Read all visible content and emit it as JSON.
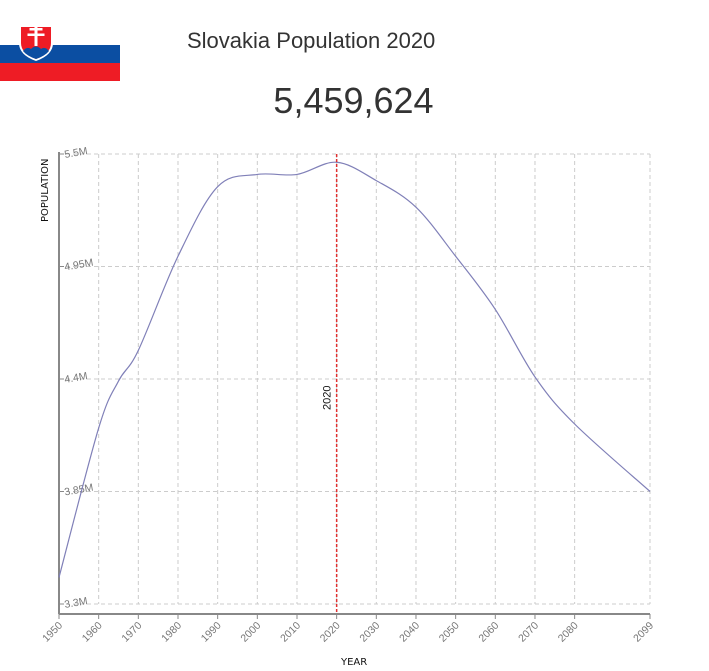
{
  "header": {
    "flag": "slovakia-flag",
    "title": "Slovakia Population 2020",
    "population_value": "5,459,624"
  },
  "colors": {
    "line": "#8080b8",
    "marker": "#e03030",
    "grid": "#cccccc",
    "axis": "#888888",
    "flag_white": "#ffffff",
    "flag_blue": "#0b4ea2",
    "flag_red": "#ee1c25"
  },
  "chart_data": {
    "type": "line",
    "title": "Slovakia Population 2020",
    "xlabel": "YEAR",
    "ylabel": "POPULATION",
    "x": [
      1950,
      1960,
      1965,
      1970,
      1980,
      1990,
      2000,
      2010,
      2020,
      2030,
      2040,
      2050,
      2060,
      2070,
      2080,
      2099
    ],
    "series": [
      {
        "name": "Population",
        "values": [
          3430000,
          4160000,
          4390000,
          4540000,
          5000000,
          5340000,
          5400000,
          5400000,
          5459624,
          5370000,
          5240000,
          5000000,
          4740000,
          4410000,
          4180000,
          3850000
        ]
      }
    ],
    "xlim": [
      1950,
      2099
    ],
    "ylim": [
      3300000,
      5500000
    ],
    "x_ticks": [
      "1950",
      "1960",
      "1970",
      "1980",
      "1990",
      "2000",
      "2010",
      "2020",
      "2030",
      "2040",
      "2050",
      "2060",
      "2070",
      "2080",
      "2099"
    ],
    "y_ticks": [
      "3.3M",
      "3.85M",
      "4.4M",
      "4.95M",
      "5.5M"
    ],
    "annotations": [
      {
        "type": "vertical-line",
        "x": 2020,
        "label": "2020",
        "style": "dashed",
        "color": "#e03030"
      }
    ],
    "grid": true,
    "legend": "none"
  }
}
